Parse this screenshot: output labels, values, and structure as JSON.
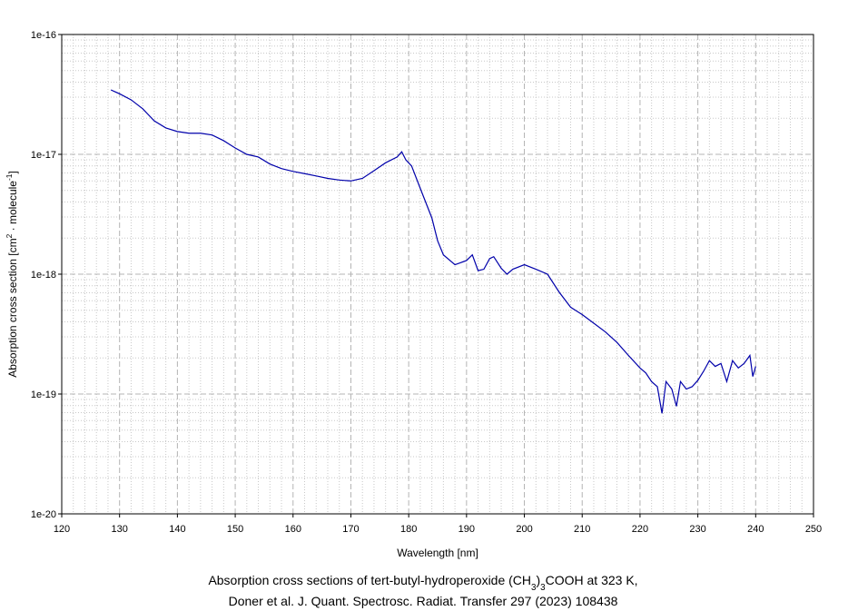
{
  "chart_data": {
    "type": "line",
    "xlabel": "Wavelength [nm]",
    "ylabel": [
      {
        "text": "Absorption cross section [cm"
      },
      {
        "text": "2",
        "script": "sup"
      },
      {
        "text": " · molecule"
      },
      {
        "text": "-1",
        "script": "sup"
      },
      {
        "text": "]"
      }
    ],
    "caption": [
      [
        {
          "text": "Absorption cross sections of tert-butyl-hydroperoxide (CH"
        },
        {
          "text": "3",
          "script": "sub"
        },
        {
          "text": ")"
        },
        {
          "text": "3",
          "script": "sub"
        },
        {
          "text": "COOH at 323 K,"
        }
      ],
      [
        {
          "text": "Doner et al. J. Quant. Spectrosc. Radiat. Transfer 297 (2023) 108438"
        }
      ]
    ],
    "xlim": [
      120,
      250
    ],
    "xticks": [
      120,
      130,
      140,
      150,
      160,
      170,
      180,
      190,
      200,
      210,
      220,
      230,
      240,
      250
    ],
    "ylim": [
      1e-20,
      1e-16
    ],
    "yticks": [
      1e-20,
      1e-19,
      1e-18,
      1e-17,
      1e-16
    ],
    "log_y": true,
    "grid": true,
    "minor_grid": true,
    "series": [
      {
        "color": "#0000aa",
        "x": [
          128.5,
          130,
          132,
          134,
          136,
          138,
          140,
          142,
          144,
          146,
          148,
          150,
          152,
          154,
          156,
          158,
          160,
          162,
          164,
          166,
          168,
          170,
          172,
          174,
          176,
          178,
          178.8,
          179.5,
          180.5,
          182,
          184,
          185,
          186,
          188,
          190,
          191,
          192,
          193,
          194,
          194.7,
          196,
          197,
          198,
          200,
          202,
          204,
          206,
          208,
          210,
          212,
          214,
          216,
          218,
          220,
          221,
          222,
          223,
          223.8,
          224.5,
          225.5,
          226.3,
          227,
          228,
          229,
          230,
          231,
          232,
          233,
          234,
          235,
          236,
          237,
          238,
          239,
          239.5,
          240
        ],
        "values": [
          3.45e-17,
          3.2e-17,
          2.85e-17,
          2.4e-17,
          1.9e-17,
          1.66e-17,
          1.55e-17,
          1.5e-17,
          1.5e-17,
          1.45e-17,
          1.3e-17,
          1.13e-17,
          1e-17,
          9.5e-18,
          8.3e-18,
          7.6e-18,
          7.2e-18,
          6.9e-18,
          6.6e-18,
          6.3e-18,
          6.1e-18,
          6e-18,
          6.3e-18,
          7.3e-18,
          8.5e-18,
          9.5e-18,
          1.05e-17,
          9e-18,
          8e-18,
          5.2e-18,
          2.95e-18,
          1.9e-18,
          1.45e-18,
          1.2e-18,
          1.3e-18,
          1.45e-18,
          1.07e-18,
          1.1e-18,
          1.35e-18,
          1.4e-18,
          1.12e-18,
          1e-18,
          1.1e-18,
          1.2e-18,
          1.1e-18,
          1e-18,
          7.1e-19,
          5.3e-19,
          4.6e-19,
          3.9e-19,
          3.3e-19,
          2.7e-19,
          2.1e-19,
          1.65e-19,
          1.5e-19,
          1.27e-19,
          1.15e-19,
          6.9e-20,
          1.27e-19,
          1.1e-19,
          7.9e-20,
          1.27e-19,
          1.1e-19,
          1.15e-19,
          1.3e-19,
          1.55e-19,
          1.9e-19,
          1.7e-19,
          1.8e-19,
          1.27e-19,
          1.9e-19,
          1.65e-19,
          1.8e-19,
          2.1e-19,
          1.4e-19,
          1.7e-19
        ]
      }
    ]
  }
}
